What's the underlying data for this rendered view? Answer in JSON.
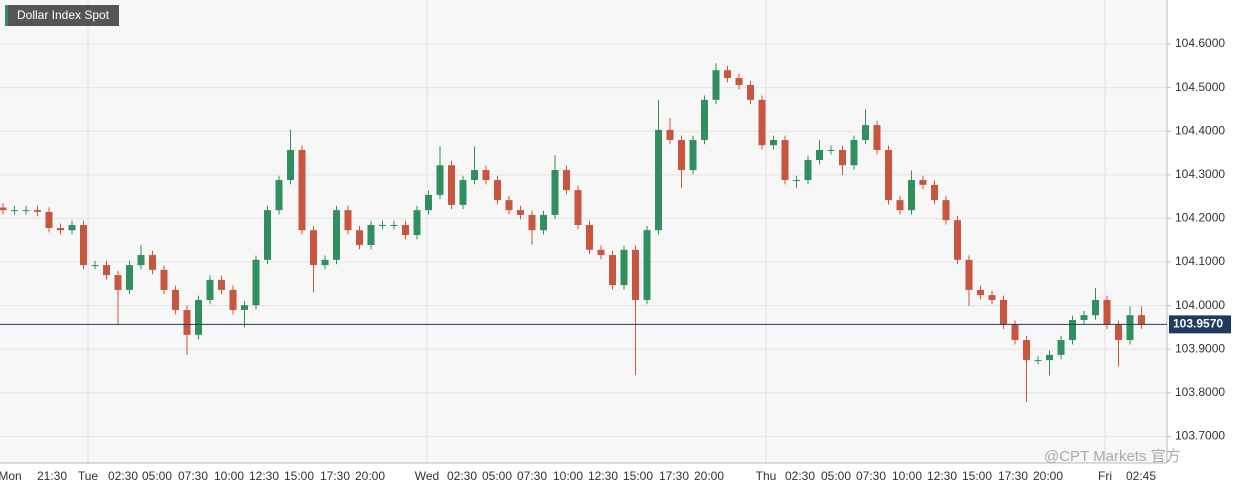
{
  "chart_data": {
    "type": "candlestick",
    "title": "Dollar Index Spot",
    "watermark": "@CPT Markets 官方",
    "up_color": "#2f8f5f",
    "down_color": "#c8553d",
    "ylim": [
      103.639,
      104.701
    ],
    "yticks": [
      {
        "value": 103.7,
        "label": "103.7000"
      },
      {
        "value": 103.8,
        "label": "103.8000"
      },
      {
        "value": 103.9,
        "label": "103.9000"
      },
      {
        "value": 104.0,
        "label": "104.0000"
      },
      {
        "value": 104.1,
        "label": "104.1000"
      },
      {
        "value": 104.2,
        "label": "104.2000"
      },
      {
        "value": 104.3,
        "label": "104.3000"
      },
      {
        "value": 104.4,
        "label": "104.4000"
      },
      {
        "value": 104.5,
        "label": "104.5000"
      },
      {
        "value": 104.6,
        "label": "104.6000"
      }
    ],
    "grid": true,
    "x_labels": [
      "Mon",
      "21:30",
      "Tue",
      "02:30",
      "05:00",
      "07:30",
      "10:00",
      "12:30",
      "15:00",
      "17:30",
      "20:00",
      "Wed",
      "02:30",
      "05:00",
      "07:30",
      "10:00",
      "12:30",
      "15:00",
      "17:30",
      "20:00",
      "Thu",
      "02:30",
      "05:00",
      "07:30",
      "10:00",
      "12:30",
      "15:00",
      "17:30",
      "20:00",
      "Fri",
      "02:45"
    ],
    "last": {
      "value": 103.957,
      "label": "103.9570"
    },
    "open": [
      104.225,
      104.219,
      104.219,
      104.219,
      104.215,
      104.178,
      104.173,
      104.185,
      104.093,
      104.093,
      104.07,
      104.036,
      104.093,
      104.116,
      104.082,
      104.036,
      103.99,
      103.933,
      104.013,
      104.059,
      104.036,
      103.99,
      104.001,
      104.105,
      104.219,
      104.288,
      104.357,
      104.173,
      104.093,
      104.105,
      104.219,
      104.173,
      104.139,
      104.185,
      104.185,
      104.185,
      104.162,
      104.219,
      104.254,
      104.322,
      104.231,
      104.288,
      104.311,
      104.288,
      104.242,
      104.219,
      104.208,
      104.173,
      104.208,
      104.311,
      104.265,
      104.185,
      104.128,
      104.116,
      104.047,
      104.128,
      104.013,
      104.173,
      104.403,
      104.38,
      104.311,
      104.38,
      104.472,
      104.54,
      104.522,
      104.506,
      104.472,
      104.368,
      104.38,
      104.288,
      104.288,
      104.334,
      104.357,
      104.357,
      104.322,
      104.38,
      104.414,
      104.357,
      104.242,
      104.219,
      104.288,
      104.277,
      104.242,
      104.196,
      104.105,
      104.036,
      104.024,
      104.013,
      103.956,
      103.921,
      103.875,
      103.875,
      103.887,
      103.921,
      103.967,
      103.978,
      104.013,
      103.956,
      103.921,
      103.978
    ],
    "high": [
      104.235,
      104.229,
      104.229,
      104.229,
      104.225,
      104.188,
      104.195,
      104.195,
      104.103,
      104.103,
      104.08,
      104.103,
      104.14,
      104.126,
      104.092,
      104.046,
      104.0,
      104.023,
      104.069,
      104.069,
      104.046,
      104.011,
      104.115,
      104.229,
      104.298,
      104.403,
      104.367,
      104.183,
      104.115,
      104.229,
      104.229,
      104.183,
      104.195,
      104.195,
      104.195,
      104.195,
      104.229,
      104.264,
      104.365,
      104.332,
      104.298,
      104.365,
      104.321,
      104.298,
      104.252,
      104.229,
      104.218,
      104.218,
      104.345,
      104.321,
      104.275,
      104.195,
      104.138,
      104.126,
      104.138,
      104.138,
      104.183,
      104.472,
      104.43,
      104.39,
      104.39,
      104.482,
      104.556,
      104.55,
      104.532,
      104.516,
      104.482,
      104.39,
      104.39,
      104.298,
      104.344,
      104.38,
      104.367,
      104.367,
      104.39,
      104.45,
      104.424,
      104.367,
      104.252,
      104.31,
      104.298,
      104.287,
      104.252,
      104.206,
      104.115,
      104.046,
      104.034,
      104.023,
      103.966,
      103.931,
      103.885,
      103.897,
      103.931,
      103.977,
      103.988,
      104.04,
      104.023,
      103.966,
      103.998,
      103.998
    ],
    "low": [
      104.209,
      104.209,
      104.209,
      104.205,
      104.168,
      104.163,
      104.163,
      104.083,
      104.083,
      104.06,
      103.955,
      104.026,
      104.083,
      104.072,
      104.026,
      103.98,
      103.887,
      103.923,
      104.003,
      104.026,
      103.98,
      103.95,
      103.991,
      104.095,
      104.209,
      104.278,
      104.163,
      104.03,
      104.083,
      104.095,
      104.163,
      104.129,
      104.129,
      104.175,
      104.175,
      104.152,
      104.152,
      104.209,
      104.244,
      104.221,
      104.221,
      104.278,
      104.278,
      104.232,
      104.209,
      104.198,
      104.14,
      104.163,
      104.198,
      104.255,
      104.175,
      104.118,
      104.106,
      104.037,
      104.037,
      103.841,
      104.003,
      104.163,
      104.37,
      104.27,
      104.301,
      104.37,
      104.462,
      104.512,
      104.496,
      104.462,
      104.358,
      104.358,
      104.278,
      104.27,
      104.278,
      104.324,
      104.347,
      104.3,
      104.312,
      104.37,
      104.347,
      104.232,
      104.209,
      104.209,
      104.267,
      104.232,
      104.186,
      104.095,
      104.0,
      104.014,
      104.003,
      103.946,
      103.911,
      103.779,
      103.865,
      103.84,
      103.877,
      103.911,
      103.957,
      103.968,
      103.946,
      103.86,
      103.911,
      103.947
    ],
    "close": [
      104.219,
      104.219,
      104.219,
      104.215,
      104.178,
      104.173,
      104.185,
      104.093,
      104.093,
      104.07,
      104.036,
      104.093,
      104.116,
      104.082,
      104.036,
      103.99,
      103.933,
      104.013,
      104.059,
      104.036,
      103.99,
      104.001,
      104.105,
      104.219,
      104.288,
      104.357,
      104.173,
      104.093,
      104.105,
      104.219,
      104.173,
      104.139,
      104.185,
      104.185,
      104.185,
      104.162,
      104.219,
      104.254,
      104.322,
      104.231,
      104.288,
      104.311,
      104.288,
      104.242,
      104.219,
      104.208,
      104.173,
      104.208,
      104.311,
      104.265,
      104.185,
      104.128,
      104.116,
      104.047,
      104.128,
      104.013,
      104.173,
      104.403,
      104.38,
      104.311,
      104.38,
      104.472,
      104.54,
      104.522,
      104.506,
      104.472,
      104.368,
      104.38,
      104.288,
      104.288,
      104.334,
      104.357,
      104.357,
      104.322,
      104.38,
      104.414,
      104.357,
      104.242,
      104.219,
      104.288,
      104.277,
      104.242,
      104.196,
      104.105,
      104.036,
      104.024,
      104.013,
      103.956,
      103.921,
      103.875,
      103.875,
      103.887,
      103.921,
      103.967,
      103.978,
      104.013,
      103.956,
      103.921,
      103.978,
      103.957
    ]
  }
}
